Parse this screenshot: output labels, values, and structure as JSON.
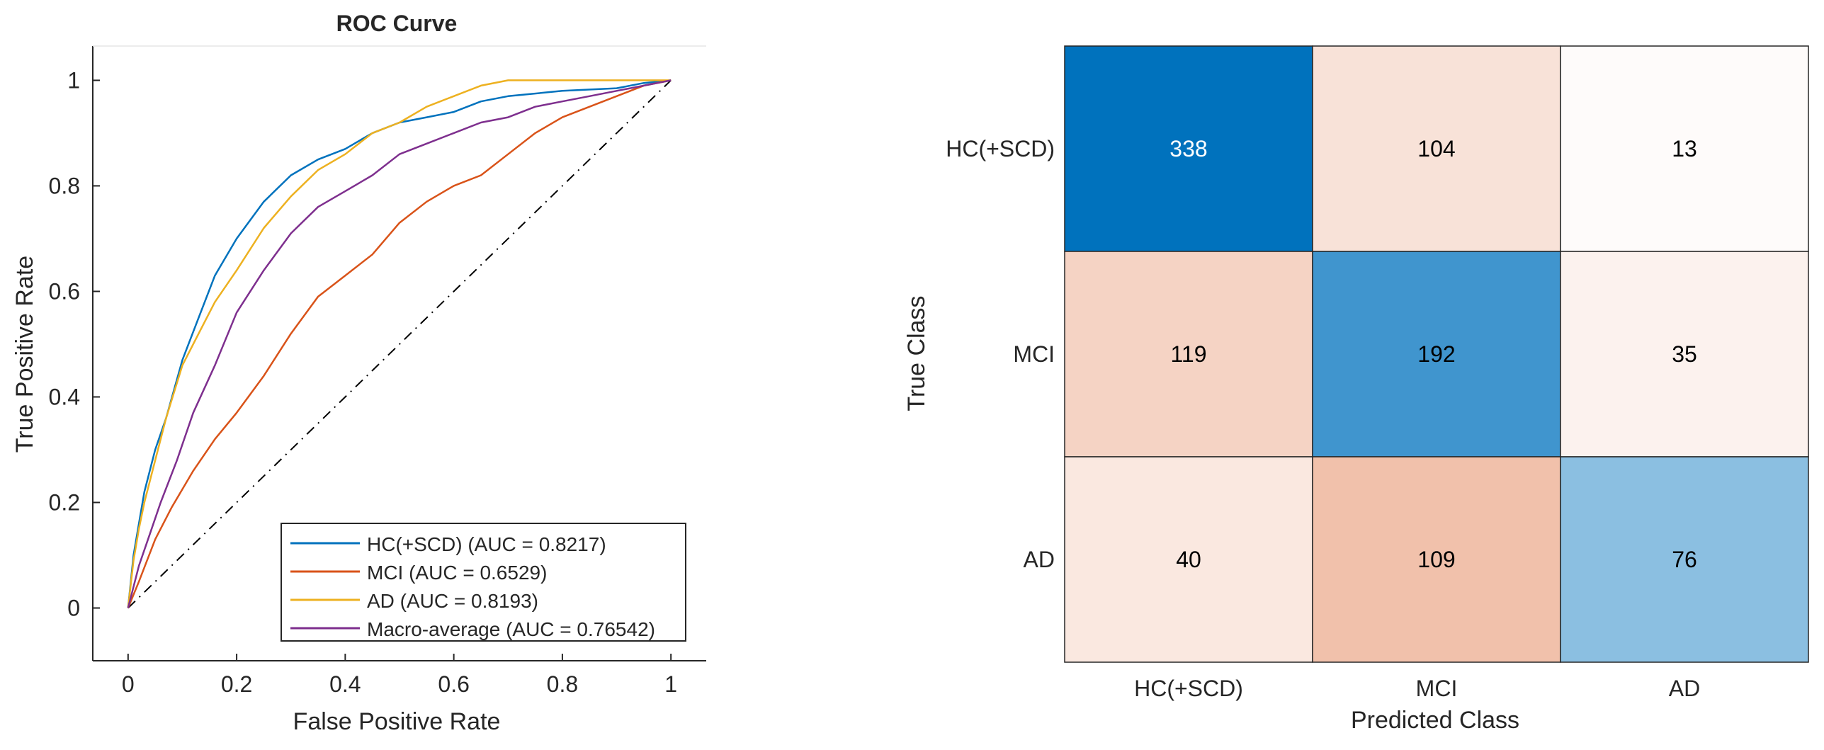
{
  "chart_data": [
    {
      "type": "line",
      "title": "ROC Curve",
      "xlabel": "False Positive Rate",
      "ylabel": "True Positive Rate",
      "xlim": [
        -0.065,
        1.065
      ],
      "ylim": [
        -0.1,
        1.065
      ],
      "xticks": [
        "0",
        "0.2",
        "0.4",
        "0.6",
        "0.8",
        "1"
      ],
      "yticks": [
        "0",
        "0.2",
        "0.4",
        "0.6",
        "0.8",
        "1"
      ],
      "legend_position": "bottom-right",
      "series": [
        {
          "name": "HC(+SCD) (AUC = 0.8217)",
          "color": "#0072BD",
          "x": [
            0,
            0.01,
            0.02,
            0.03,
            0.05,
            0.07,
            0.1,
            0.13,
            0.16,
            0.2,
            0.25,
            0.3,
            0.35,
            0.4,
            0.45,
            0.5,
            0.55,
            0.6,
            0.65,
            0.7,
            0.8,
            0.9,
            0.95,
            1
          ],
          "y": [
            0,
            0.1,
            0.16,
            0.22,
            0.3,
            0.36,
            0.47,
            0.55,
            0.63,
            0.7,
            0.77,
            0.82,
            0.85,
            0.87,
            0.9,
            0.92,
            0.93,
            0.94,
            0.96,
            0.97,
            0.98,
            0.985,
            0.995,
            1
          ]
        },
        {
          "name": "MCI (AUC = 0.6529)",
          "color": "#D95319",
          "x": [
            0,
            0.02,
            0.05,
            0.08,
            0.12,
            0.16,
            0.2,
            0.25,
            0.3,
            0.35,
            0.4,
            0.45,
            0.5,
            0.55,
            0.6,
            0.65,
            0.7,
            0.75,
            0.8,
            0.85,
            0.9,
            0.95,
            1
          ],
          "y": [
            0,
            0.05,
            0.13,
            0.19,
            0.26,
            0.32,
            0.37,
            0.44,
            0.52,
            0.59,
            0.63,
            0.67,
            0.73,
            0.77,
            0.8,
            0.82,
            0.86,
            0.9,
            0.93,
            0.95,
            0.97,
            0.99,
            1
          ]
        },
        {
          "name": "AD (AUC = 0.8193)",
          "color": "#EDB120",
          "x": [
            0,
            0.01,
            0.02,
            0.03,
            0.05,
            0.07,
            0.1,
            0.13,
            0.16,
            0.2,
            0.25,
            0.3,
            0.35,
            0.4,
            0.45,
            0.5,
            0.55,
            0.6,
            0.65,
            0.7,
            0.8,
            0.9,
            1
          ],
          "y": [
            0,
            0.09,
            0.15,
            0.2,
            0.28,
            0.36,
            0.46,
            0.52,
            0.58,
            0.64,
            0.72,
            0.78,
            0.83,
            0.86,
            0.9,
            0.92,
            0.95,
            0.97,
            0.99,
            1,
            1,
            1,
            1
          ]
        },
        {
          "name": "Macro-average (AUC = 0.76542)",
          "color": "#7E2F8E",
          "x": [
            0,
            0.02,
            0.04,
            0.06,
            0.09,
            0.12,
            0.16,
            0.2,
            0.25,
            0.3,
            0.35,
            0.4,
            0.45,
            0.5,
            0.55,
            0.6,
            0.65,
            0.7,
            0.75,
            0.8,
            0.85,
            0.9,
            0.95,
            1
          ],
          "y": [
            0,
            0.08,
            0.14,
            0.2,
            0.28,
            0.37,
            0.46,
            0.56,
            0.64,
            0.71,
            0.76,
            0.79,
            0.82,
            0.86,
            0.88,
            0.9,
            0.92,
            0.93,
            0.95,
            0.96,
            0.97,
            0.98,
            0.99,
            1
          ]
        }
      ],
      "reference_line": {
        "x": [
          0,
          1
        ],
        "y": [
          0,
          1
        ],
        "style": "dash-dot"
      }
    },
    {
      "type": "heatmap",
      "title": "",
      "xlabel": "Predicted Class",
      "ylabel": "True Class",
      "row_labels": [
        "HC(+SCD)",
        "MCI",
        "AD"
      ],
      "col_labels": [
        "HC(+SCD)",
        "MCI",
        "AD"
      ],
      "values": [
        [
          338,
          104,
          13
        ],
        [
          119,
          192,
          35
        ],
        [
          40,
          109,
          76
        ]
      ],
      "diagonal_color": "#0072BD",
      "offdiagonal_color": "#D95319"
    }
  ]
}
